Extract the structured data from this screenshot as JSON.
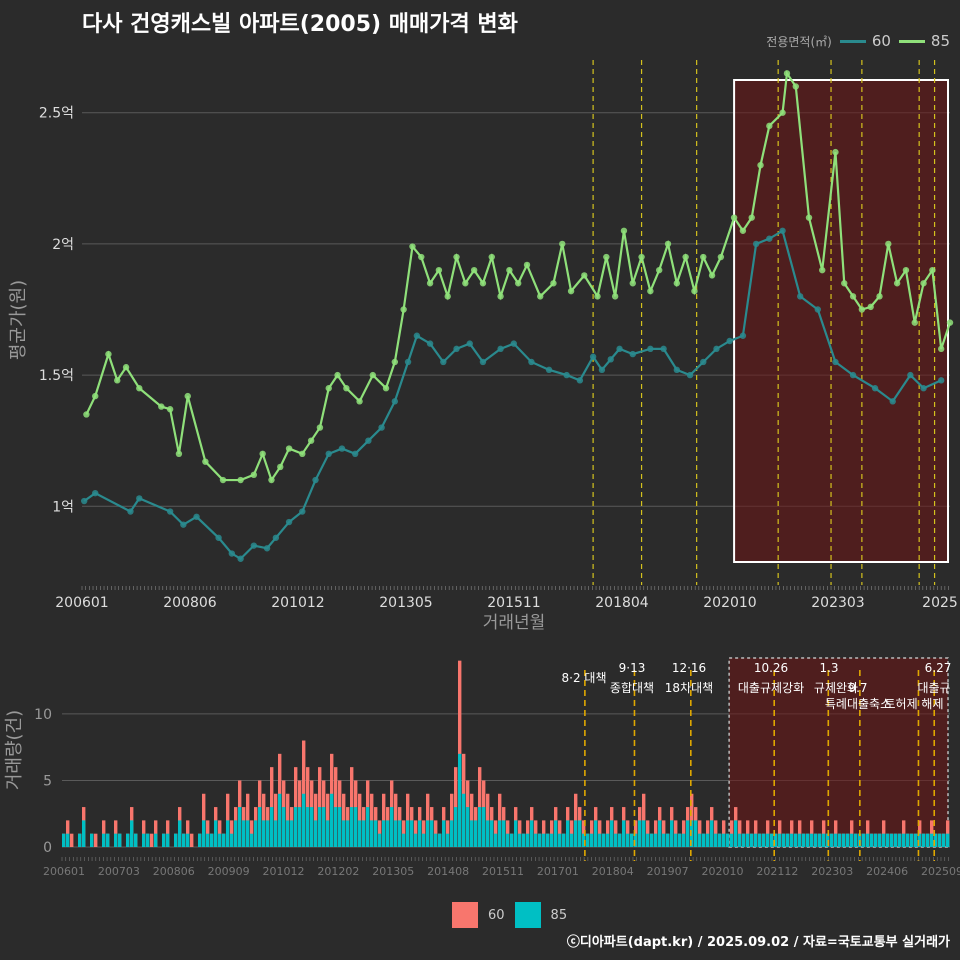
{
  "title": "다사 건영캐스빌 아파트(2005) 매매가격 변화",
  "legend": {
    "title": "전용면적(㎡)",
    "items": [
      {
        "label": "60",
        "line_color": "#2a8a8e",
        "bar_color": "#f8766d"
      },
      {
        "label": "85",
        "line_color": "#8fe07a",
        "bar_color": "#00bfc4"
      }
    ]
  },
  "credit": "ⓒ디아파트(dapt.kr) / 2025.09.02 / 자료=국토교통부 실거래가",
  "chart_data": [
    {
      "type": "line",
      "title": "다사 건영캐스빌 아파트(2005) 매매가격 변화",
      "xlabel": "거래년월",
      "ylabel": "평균가(원)",
      "x_tick_labels": [
        "200601",
        "200806",
        "201012",
        "201305",
        "201511",
        "201804",
        "202010",
        "202303",
        "2025"
      ],
      "y_ticks": [
        {
          "value": 1.0,
          "label": "1억"
        },
        {
          "value": 1.5,
          "label": "1.5억"
        },
        {
          "value": 2.0,
          "label": "2억"
        },
        {
          "value": 2.5,
          "label": "2.5억"
        }
      ],
      "ylim": [
        0.7,
        2.72
      ],
      "x_range_years": [
        2006.0,
        2025.7
      ],
      "grid": true,
      "highlight_region": {
        "from": 2020.8,
        "to": 2025.7
      },
      "policy_lines": [
        2017.6,
        2018.7,
        2019.95,
        2021.8,
        2023.0,
        2023.7,
        2025.0,
        2025.35
      ],
      "series": [
        {
          "name": "60",
          "color": "#2a8a8e",
          "points": [
            [
              2006.05,
              1.02
            ],
            [
              2006.3,
              1.05
            ],
            [
              2007.1,
              0.98
            ],
            [
              2007.3,
              1.03
            ],
            [
              2008.0,
              0.98
            ],
            [
              2008.3,
              0.93
            ],
            [
              2008.6,
              0.96
            ],
            [
              2009.1,
              0.88
            ],
            [
              2009.4,
              0.82
            ],
            [
              2009.6,
              0.8
            ],
            [
              2009.9,
              0.85
            ],
            [
              2010.2,
              0.84
            ],
            [
              2010.4,
              0.88
            ],
            [
              2010.7,
              0.94
            ],
            [
              2011.0,
              0.98
            ],
            [
              2011.3,
              1.1
            ],
            [
              2011.6,
              1.2
            ],
            [
              2011.9,
              1.22
            ],
            [
              2012.2,
              1.2
            ],
            [
              2012.5,
              1.25
            ],
            [
              2012.8,
              1.3
            ],
            [
              2013.1,
              1.4
            ],
            [
              2013.4,
              1.55
            ],
            [
              2013.6,
              1.65
            ],
            [
              2013.9,
              1.62
            ],
            [
              2014.2,
              1.55
            ],
            [
              2014.5,
              1.6
            ],
            [
              2014.8,
              1.62
            ],
            [
              2015.1,
              1.55
            ],
            [
              2015.5,
              1.6
            ],
            [
              2015.8,
              1.62
            ],
            [
              2016.2,
              1.55
            ],
            [
              2016.6,
              1.52
            ],
            [
              2017.0,
              1.5
            ],
            [
              2017.3,
              1.48
            ],
            [
              2017.6,
              1.57
            ],
            [
              2017.8,
              1.52
            ],
            [
              2018.0,
              1.56
            ],
            [
              2018.2,
              1.6
            ],
            [
              2018.5,
              1.58
            ],
            [
              2018.9,
              1.6
            ],
            [
              2019.2,
              1.6
            ],
            [
              2019.5,
              1.52
            ],
            [
              2019.8,
              1.5
            ],
            [
              2020.1,
              1.55
            ],
            [
              2020.4,
              1.6
            ],
            [
              2020.7,
              1.63
            ],
            [
              2021.0,
              1.65
            ],
            [
              2021.3,
              2.0
            ],
            [
              2021.6,
              2.02
            ],
            [
              2021.9,
              2.05
            ],
            [
              2022.3,
              1.8
            ],
            [
              2022.7,
              1.75
            ],
            [
              2023.1,
              1.55
            ],
            [
              2023.5,
              1.5
            ],
            [
              2024.0,
              1.45
            ],
            [
              2024.4,
              1.4
            ],
            [
              2024.8,
              1.5
            ],
            [
              2025.1,
              1.45
            ],
            [
              2025.5,
              1.48
            ]
          ]
        },
        {
          "name": "85",
          "color": "#8fe07a",
          "points": [
            [
              2006.1,
              1.35
            ],
            [
              2006.3,
              1.42
            ],
            [
              2006.6,
              1.58
            ],
            [
              2006.8,
              1.48
            ],
            [
              2007.0,
              1.53
            ],
            [
              2007.3,
              1.45
            ],
            [
              2007.8,
              1.38
            ],
            [
              2008.0,
              1.37
            ],
            [
              2008.2,
              1.2
            ],
            [
              2008.4,
              1.42
            ],
            [
              2008.8,
              1.17
            ],
            [
              2009.2,
              1.1
            ],
            [
              2009.6,
              1.1
            ],
            [
              2009.9,
              1.12
            ],
            [
              2010.1,
              1.2
            ],
            [
              2010.3,
              1.1
            ],
            [
              2010.5,
              1.15
            ],
            [
              2010.7,
              1.22
            ],
            [
              2011.0,
              1.2
            ],
            [
              2011.2,
              1.25
            ],
            [
              2011.4,
              1.3
            ],
            [
              2011.6,
              1.45
            ],
            [
              2011.8,
              1.5
            ],
            [
              2012.0,
              1.45
            ],
            [
              2012.3,
              1.4
            ],
            [
              2012.6,
              1.5
            ],
            [
              2012.9,
              1.45
            ],
            [
              2013.1,
              1.55
            ],
            [
              2013.3,
              1.75
            ],
            [
              2013.5,
              1.99
            ],
            [
              2013.7,
              1.95
            ],
            [
              2013.9,
              1.85
            ],
            [
              2014.1,
              1.9
            ],
            [
              2014.3,
              1.8
            ],
            [
              2014.5,
              1.95
            ],
            [
              2014.7,
              1.85
            ],
            [
              2014.9,
              1.9
            ],
            [
              2015.1,
              1.85
            ],
            [
              2015.3,
              1.95
            ],
            [
              2015.5,
              1.8
            ],
            [
              2015.7,
              1.9
            ],
            [
              2015.9,
              1.85
            ],
            [
              2016.1,
              1.92
            ],
            [
              2016.4,
              1.8
            ],
            [
              2016.7,
              1.85
            ],
            [
              2016.9,
              2.0
            ],
            [
              2017.1,
              1.82
            ],
            [
              2017.4,
              1.88
            ],
            [
              2017.7,
              1.8
            ],
            [
              2017.9,
              1.95
            ],
            [
              2018.1,
              1.8
            ],
            [
              2018.3,
              2.05
            ],
            [
              2018.5,
              1.85
            ],
            [
              2018.7,
              1.95
            ],
            [
              2018.9,
              1.82
            ],
            [
              2019.1,
              1.9
            ],
            [
              2019.3,
              2.0
            ],
            [
              2019.5,
              1.85
            ],
            [
              2019.7,
              1.95
            ],
            [
              2019.9,
              1.82
            ],
            [
              2020.1,
              1.95
            ],
            [
              2020.3,
              1.88
            ],
            [
              2020.5,
              1.95
            ],
            [
              2020.8,
              2.1
            ],
            [
              2021.0,
              2.05
            ],
            [
              2021.2,
              2.1
            ],
            [
              2021.4,
              2.3
            ],
            [
              2021.6,
              2.45
            ],
            [
              2021.9,
              2.5
            ],
            [
              2022.0,
              2.65
            ],
            [
              2022.2,
              2.6
            ],
            [
              2022.5,
              2.1
            ],
            [
              2022.8,
              1.9
            ],
            [
              2023.1,
              2.35
            ],
            [
              2023.3,
              1.85
            ],
            [
              2023.5,
              1.8
            ],
            [
              2023.7,
              1.75
            ],
            [
              2023.9,
              1.76
            ],
            [
              2024.1,
              1.8
            ],
            [
              2024.3,
              2.0
            ],
            [
              2024.5,
              1.85
            ],
            [
              2024.7,
              1.9
            ],
            [
              2024.9,
              1.7
            ],
            [
              2025.1,
              1.85
            ],
            [
              2025.3,
              1.9
            ],
            [
              2025.5,
              1.6
            ],
            [
              2025.7,
              1.7
            ]
          ]
        }
      ]
    },
    {
      "type": "bar",
      "ylabel": "거래량(건)",
      "x_tick_labels": [
        "200601",
        "200703",
        "200806",
        "200909",
        "201012",
        "201202",
        "201305",
        "201408",
        "201511",
        "201701",
        "201804",
        "201907",
        "202010",
        "202112",
        "202303",
        "202406",
        "202509"
      ],
      "y_ticks": [
        {
          "value": 0,
          "label": "0"
        },
        {
          "value": 5,
          "label": "5"
        },
        {
          "value": 10,
          "label": "10"
        }
      ],
      "ylim": [
        0,
        14.5
      ],
      "grid": true,
      "highlight_region": {
        "from": 2020.8,
        "to": 2025.7
      },
      "policy_lines": [
        2017.6,
        2018.7,
        2019.95,
        2021.8,
        2023.0,
        2023.7,
        2025.0,
        2025.35
      ],
      "annotations": [
        "8·2 대책",
        "9·13",
        "종합대책",
        "12·16",
        "18차대책",
        "10.26",
        "대출규제강화",
        "1.3",
        "규제완화",
        "9.7",
        "특례대출축소",
        "토허제 해제",
        "6.27",
        "대출규"
      ],
      "series": [
        {
          "name": "60",
          "color": "#f8766d",
          "totals": [
            1,
            2,
            1,
            0,
            1,
            3,
            0,
            1,
            1,
            0,
            2,
            1,
            0,
            2,
            1,
            0,
            1,
            3,
            1,
            0,
            2,
            1,
            1,
            2,
            0,
            1,
            2,
            0,
            1,
            3,
            1,
            2,
            1,
            0,
            1,
            4,
            2,
            1,
            3,
            2,
            1,
            4,
            2,
            3,
            5,
            3,
            4,
            2,
            3,
            5,
            4,
            3,
            6,
            4,
            7,
            5,
            4,
            3,
            6,
            5,
            8,
            6,
            5,
            4,
            6,
            5,
            4,
            7,
            6,
            5,
            4,
            3,
            6,
            5,
            4,
            3,
            5,
            4,
            3,
            2,
            4,
            3,
            5,
            4,
            3,
            2,
            4,
            3,
            2,
            3,
            2,
            4,
            3,
            2,
            1,
            3,
            2,
            4,
            6,
            14,
            7,
            5,
            4,
            3,
            6,
            5,
            4,
            3,
            2,
            4,
            3,
            2,
            1,
            3,
            2,
            1,
            2,
            3,
            2,
            1,
            2,
            1,
            2,
            3,
            2,
            1,
            3,
            2,
            4,
            3,
            2,
            1,
            2,
            3,
            2,
            1,
            2,
            3,
            2,
            1,
            3,
            2,
            1,
            2,
            3,
            4,
            2,
            1,
            2,
            3,
            2,
            1,
            3,
            2,
            1,
            2,
            3,
            4,
            3,
            2,
            1,
            2,
            3,
            2,
            1,
            2,
            1,
            2,
            3,
            2,
            1,
            2,
            1,
            2,
            1,
            1,
            2,
            1,
            1,
            2,
            1,
            1,
            2,
            1,
            2,
            1,
            1,
            2,
            1,
            1,
            2,
            1,
            1,
            2,
            1,
            1,
            1,
            2,
            1,
            1,
            1,
            2,
            1,
            1,
            1,
            2,
            1,
            1,
            1,
            1,
            2,
            1,
            1,
            1,
            2,
            1,
            1,
            2,
            1,
            1,
            1,
            2
          ]
        },
        {
          "name": "85",
          "color": "#00bfc4",
          "totals": [
            1,
            1,
            0,
            0,
            1,
            2,
            0,
            1,
            0,
            0,
            1,
            1,
            0,
            1,
            1,
            0,
            1,
            2,
            1,
            0,
            1,
            1,
            0,
            1,
            0,
            1,
            1,
            0,
            1,
            2,
            1,
            1,
            0,
            0,
            1,
            2,
            1,
            1,
            2,
            1,
            1,
            2,
            1,
            2,
            3,
            2,
            2,
            1,
            2,
            3,
            2,
            2,
            3,
            2,
            4,
            3,
            2,
            2,
            3,
            3,
            4,
            3,
            3,
            2,
            3,
            3,
            2,
            4,
            3,
            3,
            2,
            2,
            3,
            3,
            2,
            2,
            3,
            2,
            2,
            1,
            2,
            2,
            3,
            2,
            2,
            1,
            2,
            2,
            1,
            2,
            1,
            2,
            2,
            1,
            1,
            2,
            1,
            2,
            3,
            7,
            4,
            3,
            2,
            2,
            3,
            3,
            2,
            2,
            1,
            2,
            2,
            1,
            1,
            2,
            1,
            1,
            1,
            2,
            1,
            1,
            1,
            1,
            1,
            2,
            1,
            1,
            2,
            1,
            2,
            2,
            1,
            1,
            1,
            2,
            1,
            1,
            1,
            2,
            1,
            1,
            2,
            1,
            1,
            1,
            2,
            2,
            1,
            1,
            1,
            2,
            1,
            1,
            2,
            1,
            1,
            1,
            2,
            2,
            2,
            1,
            1,
            1,
            2,
            1,
            1,
            1,
            1,
            1,
            2,
            1,
            1,
            1,
            1,
            1,
            1,
            1,
            1,
            1,
            1,
            1,
            1,
            1,
            1,
            1,
            1,
            1,
            1,
            1,
            1,
            1,
            1,
            1,
            1,
            1,
            1,
            1,
            1,
            1,
            1,
            1,
            1,
            1,
            1,
            1,
            1,
            1,
            1,
            1,
            1,
            1,
            1,
            1,
            1,
            1,
            1,
            1,
            1,
            1,
            1,
            1,
            1,
            1
          ]
        }
      ]
    }
  ]
}
